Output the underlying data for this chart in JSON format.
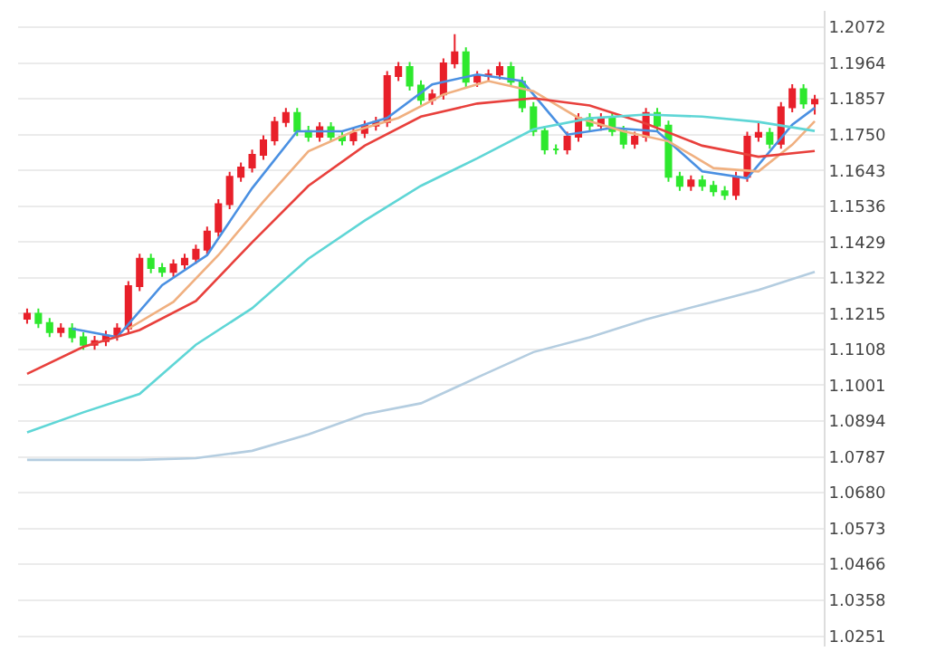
{
  "chart_data": {
    "type": "candlestick",
    "categories": [
      null,
      null,
      null,
      null,
      null,
      null,
      null,
      null,
      null,
      null,
      null,
      null,
      null,
      null,
      null,
      null,
      null,
      null,
      null,
      null,
      null,
      null,
      null,
      null,
      null,
      null,
      null,
      null,
      null,
      null,
      null,
      null,
      null,
      null,
      null,
      null,
      null,
      null,
      null,
      null,
      null,
      null,
      null,
      null,
      null,
      null,
      null,
      null,
      null,
      null,
      null,
      null,
      null,
      null,
      null,
      null,
      null,
      null,
      null,
      null,
      null,
      null,
      null,
      null,
      null,
      null,
      null,
      null,
      null,
      null,
      null
    ],
    "ohlc": [
      [
        1.12,
        1.123,
        1.1185,
        1.1215
      ],
      [
        1.1215,
        1.123,
        1.1172,
        1.1187
      ],
      [
        1.1187,
        1.1202,
        1.1145,
        1.116
      ],
      [
        1.116,
        1.1186,
        1.1145,
        1.1171
      ],
      [
        1.1171,
        1.1186,
        1.1129,
        1.1144
      ],
      [
        1.1144,
        1.1159,
        1.1107,
        1.1122
      ],
      [
        1.1122,
        1.1148,
        1.1107,
        1.1133
      ],
      [
        1.1133,
        1.1164,
        1.1118,
        1.1149
      ],
      [
        1.1149,
        1.1186,
        1.1134,
        1.1171
      ],
      [
        1.1171,
        1.1312,
        1.1156,
        1.1297
      ],
      [
        1.1297,
        1.1394,
        1.1282,
        1.1379
      ],
      [
        1.1379,
        1.1394,
        1.1336,
        1.1351
      ],
      [
        1.1351,
        1.1366,
        1.1325,
        1.134
      ],
      [
        1.134,
        1.1377,
        1.1325,
        1.1362
      ],
      [
        1.1362,
        1.1394,
        1.1347,
        1.1379
      ],
      [
        1.1379,
        1.1421,
        1.1364,
        1.1406
      ],
      [
        1.1406,
        1.1475,
        1.1391,
        1.146
      ],
      [
        1.146,
        1.1557,
        1.1445,
        1.1542
      ],
      [
        1.1542,
        1.1639,
        1.1527,
        1.1624
      ],
      [
        1.1624,
        1.1667,
        1.1609,
        1.1652
      ],
      [
        1.1652,
        1.1705,
        1.1637,
        1.169
      ],
      [
        1.169,
        1.1748,
        1.1675,
        1.1733
      ],
      [
        1.1733,
        1.1803,
        1.1718,
        1.1788
      ],
      [
        1.1788,
        1.183,
        1.1773,
        1.1815
      ],
      [
        1.1815,
        1.183,
        1.1746,
        1.1761
      ],
      [
        1.1761,
        1.1776,
        1.1729,
        1.1744
      ],
      [
        1.1744,
        1.1787,
        1.1729,
        1.1772
      ],
      [
        1.1772,
        1.1787,
        1.1729,
        1.1744
      ],
      [
        1.1744,
        1.1759,
        1.1718,
        1.1733
      ],
      [
        1.1733,
        1.177,
        1.1718,
        1.1755
      ],
      [
        1.1755,
        1.1792,
        1.174,
        1.1777
      ],
      [
        1.1777,
        1.1803,
        1.1762,
        1.1788
      ],
      [
        1.1788,
        1.194,
        1.1773,
        1.1925
      ],
      [
        1.1925,
        1.1967,
        1.191,
        1.1952
      ],
      [
        1.1952,
        1.1967,
        1.1882,
        1.1897
      ],
      [
        1.1897,
        1.1912,
        1.1839,
        1.1854
      ],
      [
        1.1854,
        1.1885,
        1.1839,
        1.187
      ],
      [
        1.187,
        1.1978,
        1.1855,
        1.1963
      ],
      [
        1.1963,
        1.205,
        1.1948,
        1.1996
      ],
      [
        1.1996,
        1.2011,
        1.1893,
        1.1908
      ],
      [
        1.1908,
        1.194,
        1.1893,
        1.1925
      ],
      [
        1.1925,
        1.1945,
        1.191,
        1.193
      ],
      [
        1.193,
        1.1967,
        1.1915,
        1.1952
      ],
      [
        1.1952,
        1.1967,
        1.1893,
        1.1908
      ],
      [
        1.1908,
        1.1923,
        1.1817,
        1.1832
      ],
      [
        1.1832,
        1.1847,
        1.1746,
        1.1761
      ],
      [
        1.1761,
        1.1776,
        1.1691,
        1.1706
      ],
      [
        1.1706,
        1.1721,
        1.1691,
        1.1706
      ],
      [
        1.1706,
        1.1759,
        1.1691,
        1.1744
      ],
      [
        1.1744,
        1.1814,
        1.1729,
        1.1799
      ],
      [
        1.1799,
        1.1814,
        1.1762,
        1.1777
      ],
      [
        1.1777,
        1.1814,
        1.1762,
        1.1799
      ],
      [
        1.1799,
        1.1814,
        1.1746,
        1.1761
      ],
      [
        1.1761,
        1.1776,
        1.1708,
        1.1723
      ],
      [
        1.1723,
        1.1759,
        1.1708,
        1.1744
      ],
      [
        1.1744,
        1.183,
        1.1729,
        1.1815
      ],
      [
        1.1815,
        1.183,
        1.1762,
        1.1777
      ],
      [
        1.1777,
        1.1792,
        1.1609,
        1.1624
      ],
      [
        1.1624,
        1.1639,
        1.1582,
        1.1597
      ],
      [
        1.1597,
        1.1628,
        1.1582,
        1.1613
      ],
      [
        1.1613,
        1.1628,
        1.1582,
        1.1597
      ],
      [
        1.1597,
        1.1612,
        1.1566,
        1.1581
      ],
      [
        1.1581,
        1.1596,
        1.1555,
        1.157
      ],
      [
        1.157,
        1.1639,
        1.1555,
        1.1624
      ],
      [
        1.1624,
        1.1759,
        1.1609,
        1.1744
      ],
      [
        1.1744,
        1.179,
        1.1729,
        1.1755
      ],
      [
        1.1755,
        1.177,
        1.1708,
        1.1723
      ],
      [
        1.1723,
        1.1847,
        1.1708,
        1.1832
      ],
      [
        1.1832,
        1.1901,
        1.1817,
        1.1886
      ],
      [
        1.1886,
        1.1901,
        1.1828,
        1.1843
      ],
      [
        1.1843,
        1.1869,
        1.181,
        1.1854
      ]
    ],
    "series": [
      {
        "type": "line",
        "color": "#4a90e2",
        "values": [
          null,
          null,
          null,
          null,
          1.117,
          null,
          null,
          null,
          1.1145,
          null,
          null,
          null,
          1.13,
          null,
          null,
          null,
          1.139,
          null,
          null,
          null,
          1.159,
          null,
          null,
          null,
          1.176,
          null,
          null,
          null,
          1.176,
          null,
          null,
          null,
          1.18,
          null,
          null,
          null,
          1.19,
          null,
          null,
          null,
          1.193,
          null,
          null,
          null,
          1.191,
          null,
          null,
          null,
          1.175,
          null,
          null,
          null,
          1.177,
          null,
          null,
          null,
          1.176,
          null,
          null,
          null,
          1.164,
          null,
          null,
          null,
          1.162,
          null,
          null,
          null,
          1.178,
          null,
          1.183
        ]
      },
      {
        "type": "line",
        "color": "#f0b080",
        "values": [
          null,
          null,
          null,
          null,
          null,
          null,
          null,
          null,
          null,
          1.117,
          null,
          null,
          null,
          1.125,
          null,
          null,
          null,
          1.139,
          null,
          null,
          null,
          1.155,
          null,
          null,
          null,
          1.17,
          null,
          null,
          null,
          1.176,
          null,
          null,
          null,
          1.18,
          null,
          null,
          null,
          1.187,
          null,
          null,
          null,
          1.191,
          null,
          null,
          null,
          1.188,
          null,
          null,
          null,
          1.18,
          null,
          null,
          null,
          1.176,
          null,
          null,
          null,
          1.173,
          null,
          null,
          null,
          1.165,
          null,
          null,
          null,
          1.164,
          null,
          null,
          1.172,
          null,
          1.179
        ]
      },
      {
        "type": "line",
        "color": "#e8403c",
        "values": [
          1.1035,
          null,
          null,
          null,
          null,
          1.1116,
          null,
          null,
          null,
          null,
          1.1166,
          null,
          null,
          null,
          null,
          1.1253,
          null,
          null,
          null,
          null,
          1.1428,
          null,
          null,
          null,
          null,
          1.1597,
          null,
          null,
          null,
          null,
          1.1717,
          null,
          null,
          null,
          null,
          1.1804,
          null,
          null,
          null,
          null,
          1.1843,
          null,
          null,
          null,
          null,
          1.1859,
          null,
          null,
          null,
          null,
          1.1837,
          null,
          null,
          null,
          null,
          1.1783,
          null,
          null,
          null,
          null,
          1.1717,
          null,
          null,
          null,
          null,
          1.1684,
          null,
          null,
          null,
          null,
          1.1701
        ]
      },
      {
        "type": "line",
        "color": "#5fd6d6",
        "values": [
          1.086,
          null,
          null,
          null,
          null,
          1.092,
          null,
          null,
          null,
          null,
          1.0975,
          null,
          null,
          null,
          null,
          1.1122,
          null,
          null,
          null,
          null,
          1.1231,
          null,
          null,
          null,
          null,
          1.1379,
          null,
          null,
          null,
          null,
          1.1493,
          null,
          null,
          null,
          null,
          1.1597,
          null,
          null,
          null,
          null,
          1.1679,
          null,
          null,
          null,
          null,
          1.1766,
          null,
          null,
          null,
          null,
          1.1799,
          null,
          null,
          null,
          null,
          1.181,
          null,
          null,
          null,
          null,
          1.1804,
          null,
          null,
          null,
          null,
          1.1788,
          null,
          null,
          null,
          null,
          1.1761
        ]
      },
      {
        "type": "line",
        "color": "#b4cde0",
        "values": [
          1.0778,
          null,
          null,
          null,
          null,
          null,
          null,
          null,
          null,
          null,
          1.0778,
          null,
          null,
          null,
          null,
          1.0783,
          null,
          null,
          null,
          null,
          1.0805,
          null,
          null,
          null,
          null,
          1.0854,
          null,
          null,
          null,
          null,
          1.0914,
          null,
          null,
          null,
          null,
          1.0947,
          null,
          null,
          null,
          null,
          1.1024,
          null,
          null,
          null,
          null,
          1.11,
          null,
          null,
          null,
          null,
          1.1144,
          null,
          null,
          null,
          null,
          1.1198,
          null,
          null,
          null,
          null,
          1.1242,
          null,
          null,
          null,
          null,
          1.1286,
          null,
          null,
          null,
          null,
          1.134
        ]
      }
    ],
    "ylim": [
      1.022,
      1.212
    ],
    "yticks": [
      1.0251,
      1.0358,
      1.0466,
      1.0573,
      {
        "value": 1.068,
        "label": "1.0680"
      },
      1.0787,
      1.0894,
      1.1001,
      1.1108,
      1.1215,
      1.1322,
      1.1429,
      1.1536,
      1.1643,
      {
        "value": 1.175,
        "label": "1.1750"
      },
      1.1857,
      1.1964,
      1.2072
    ],
    "grid": "y"
  }
}
